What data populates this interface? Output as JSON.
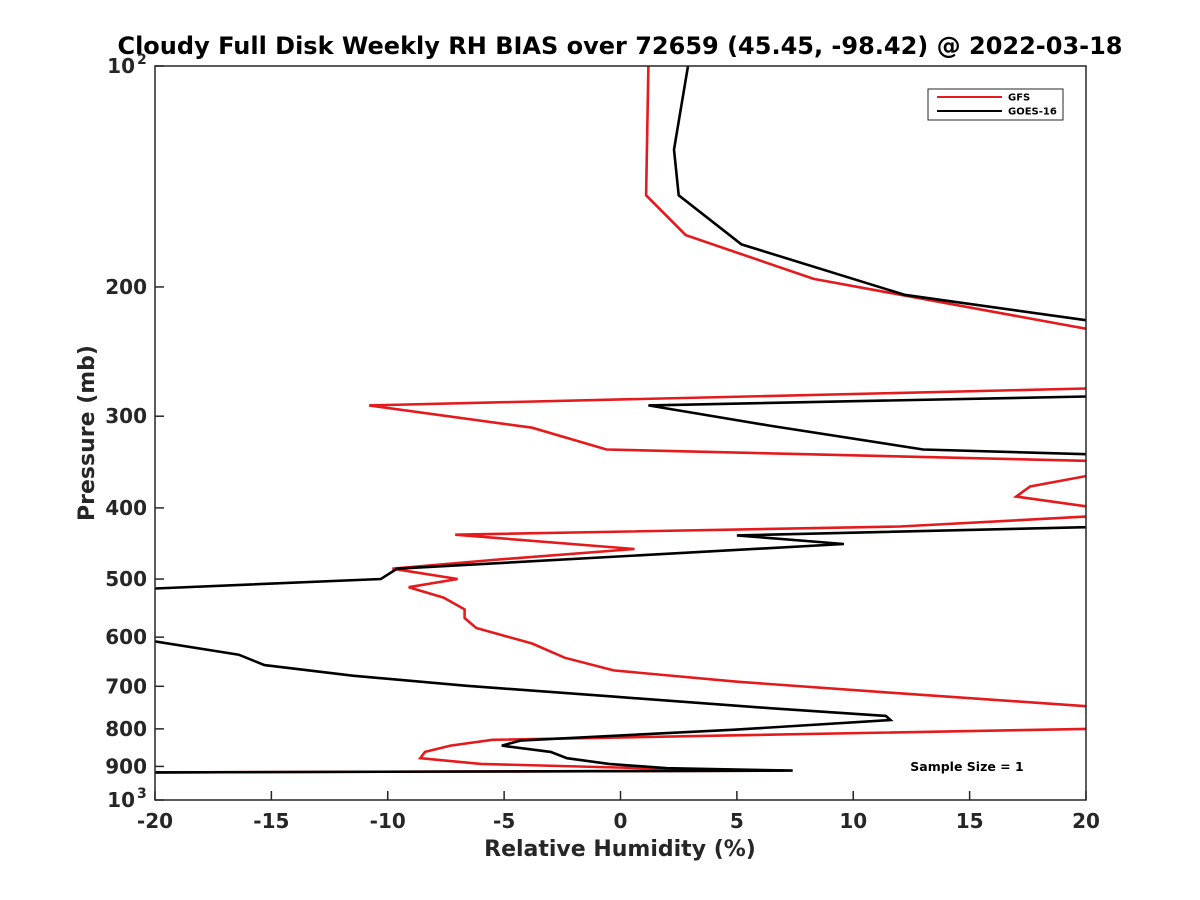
{
  "chart_data": {
    "type": "line",
    "title": "Cloudy Full Disk Weekly RH BIAS over 72659 (45.45, -98.42) @ 2022-03-18",
    "xlabel": "Relative Humidity (%)",
    "ylabel": "Pressure (mb)",
    "xlim": [
      -20,
      20
    ],
    "ylim": [
      100,
      1000
    ],
    "yscale": "log",
    "y_reversed": true,
    "grid": false,
    "legend_position": "top-right",
    "x_ticks": [
      "-20",
      "-15",
      "-10",
      "-5",
      "0",
      "5",
      "10",
      "15",
      "20"
    ],
    "y_ticks": [
      {
        "value": 100,
        "base": "10",
        "exp": "2"
      },
      {
        "value": 200,
        "label": "200"
      },
      {
        "value": 300,
        "label": "300"
      },
      {
        "value": 400,
        "label": "400"
      },
      {
        "value": 500,
        "label": "500"
      },
      {
        "value": 600,
        "label": "600"
      },
      {
        "value": 700,
        "label": "700"
      },
      {
        "value": 800,
        "label": "800"
      },
      {
        "value": 900,
        "label": "900"
      },
      {
        "value": 1000,
        "base": "10",
        "exp": "3"
      }
    ],
    "annotation": "Sample Size = 1",
    "series": [
      {
        "name": "GFS",
        "color": "#e41a1c",
        "points": [
          [
            1.2,
            100
          ],
          [
            1.1,
            150
          ],
          [
            2.8,
            170
          ],
          [
            8.3,
            195
          ],
          [
            19.0,
            225
          ],
          [
            20.0,
            228
          ],
          [
            null,
            null
          ],
          [
            20.0,
            275
          ],
          [
            -10.8,
            290
          ],
          [
            -3.8,
            311
          ],
          [
            -0.6,
            333
          ],
          [
            20.0,
            345
          ],
          [
            null,
            null
          ],
          [
            20.0,
            362
          ],
          [
            17.6,
            374
          ],
          [
            17.0,
            386
          ],
          [
            20.0,
            398
          ],
          [
            null,
            null
          ],
          [
            20.0,
            411
          ],
          [
            12.0,
            424
          ],
          [
            -7.1,
            435
          ],
          [
            0.6,
            455
          ],
          [
            -5.5,
            471
          ],
          [
            -9.8,
            484
          ],
          [
            -7.0,
            500
          ],
          [
            -9.1,
            513
          ],
          [
            -7.6,
            530
          ],
          [
            -6.7,
            550
          ],
          [
            -6.7,
            565
          ],
          [
            -6.2,
            583
          ],
          [
            -3.8,
            612
          ],
          [
            -2.4,
            640
          ],
          [
            -0.3,
            666
          ],
          [
            5.0,
            690
          ],
          [
            11.0,
            712
          ],
          [
            20.0,
            745
          ],
          [
            null,
            null
          ],
          [
            20.0,
            800
          ],
          [
            -5.5,
            828
          ],
          [
            -7.3,
            843
          ],
          [
            -8.4,
            860
          ],
          [
            -8.6,
            877
          ],
          [
            -6.0,
            893
          ],
          [
            1.0,
            905
          ],
          [
            7.0,
            912
          ],
          [
            -20.0,
            917
          ]
        ]
      },
      {
        "name": "GOES-16",
        "color": "#000000",
        "points": [
          [
            2.9,
            100
          ],
          [
            2.3,
            130
          ],
          [
            2.5,
            150
          ],
          [
            5.2,
            175
          ],
          [
            12.2,
            205
          ],
          [
            20.0,
            222
          ],
          [
            null,
            null
          ],
          [
            20.0,
            282
          ],
          [
            1.2,
            290
          ],
          [
            6.4,
            309
          ],
          [
            13.0,
            333
          ],
          [
            20.0,
            338
          ],
          [
            null,
            null
          ],
          [
            20.0,
            425
          ],
          [
            5.0,
            436
          ],
          [
            9.6,
            448
          ],
          [
            -9.6,
            484
          ],
          [
            -10.3,
            500
          ],
          [
            -20.0,
            515
          ],
          [
            null,
            null
          ],
          [
            -20.0,
            608
          ],
          [
            -16.4,
            634
          ],
          [
            -15.3,
            655
          ],
          [
            -11.5,
            677
          ],
          [
            -6.6,
            699
          ],
          [
            -0.3,
            723
          ],
          [
            6.5,
            750
          ],
          [
            11.4,
            768
          ],
          [
            11.6,
            778
          ],
          [
            4.9,
            802
          ],
          [
            -0.5,
            818
          ],
          [
            -4.3,
            830
          ],
          [
            -5.1,
            843
          ],
          [
            -3.0,
            860
          ],
          [
            -2.3,
            877
          ],
          [
            -0.5,
            893
          ],
          [
            2.0,
            905
          ],
          [
            7.4,
            912
          ],
          [
            -20.0,
            917
          ]
        ]
      }
    ]
  }
}
